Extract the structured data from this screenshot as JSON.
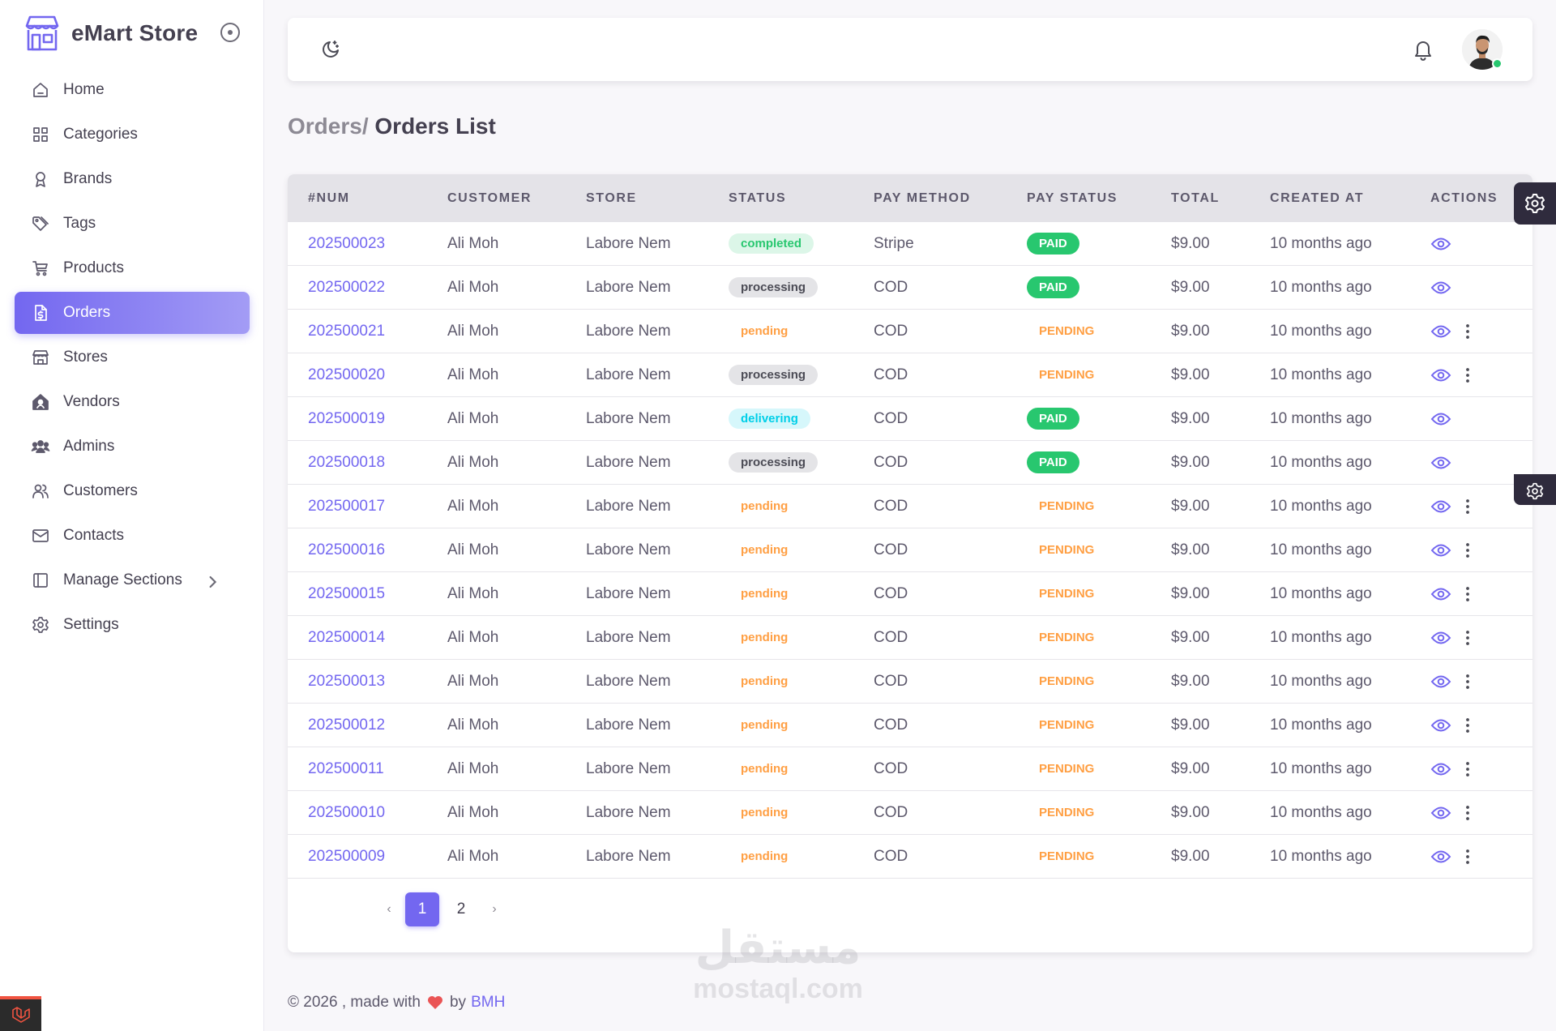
{
  "brand": {
    "name": "eMart Store"
  },
  "sidebar": {
    "items": [
      {
        "label": "Home",
        "icon": "home-icon"
      },
      {
        "label": "Categories",
        "icon": "categories-icon"
      },
      {
        "label": "Brands",
        "icon": "brands-icon"
      },
      {
        "label": "Tags",
        "icon": "tags-icon"
      },
      {
        "label": "Products",
        "icon": "cart-icon"
      },
      {
        "label": "Orders",
        "icon": "orders-icon",
        "active": true
      },
      {
        "label": "Stores",
        "icon": "store-icon"
      },
      {
        "label": "Vendors",
        "icon": "vendors-icon"
      },
      {
        "label": "Admins",
        "icon": "admins-icon"
      },
      {
        "label": "Customers",
        "icon": "customers-icon"
      },
      {
        "label": "Contacts",
        "icon": "mail-icon"
      },
      {
        "label": "Manage Sections",
        "icon": "sections-icon",
        "has_submenu": true
      },
      {
        "label": "Settings",
        "icon": "settings-icon"
      }
    ]
  },
  "breadcrumb": {
    "parent": "Orders/",
    "current": "Orders List"
  },
  "table": {
    "columns": [
      "#NUM",
      "CUSTOMER",
      "STORE",
      "STATUS",
      "PAY METHOD",
      "PAY STATUS",
      "TOTAL",
      "CREATED AT",
      "ACTIONS"
    ],
    "rows": [
      {
        "num": "202500023",
        "customer": "Ali Moh",
        "store": "Labore Nem",
        "status": "completed",
        "pay_method": "Stripe",
        "pay_status": "PAID",
        "total": "$9.00",
        "created": "10 months ago",
        "more": false
      },
      {
        "num": "202500022",
        "customer": "Ali Moh",
        "store": "Labore Nem",
        "status": "processing",
        "pay_method": "COD",
        "pay_status": "PAID",
        "total": "$9.00",
        "created": "10 months ago",
        "more": false
      },
      {
        "num": "202500021",
        "customer": "Ali Moh",
        "store": "Labore Nem",
        "status": "pending",
        "pay_method": "COD",
        "pay_status": "PENDING",
        "total": "$9.00",
        "created": "10 months ago",
        "more": true
      },
      {
        "num": "202500020",
        "customer": "Ali Moh",
        "store": "Labore Nem",
        "status": "processing",
        "pay_method": "COD",
        "pay_status": "PENDING",
        "total": "$9.00",
        "created": "10 months ago",
        "more": true
      },
      {
        "num": "202500019",
        "customer": "Ali Moh",
        "store": "Labore Nem",
        "status": "delivering",
        "pay_method": "COD",
        "pay_status": "PAID",
        "total": "$9.00",
        "created": "10 months ago",
        "more": false
      },
      {
        "num": "202500018",
        "customer": "Ali Moh",
        "store": "Labore Nem",
        "status": "processing",
        "pay_method": "COD",
        "pay_status": "PAID",
        "total": "$9.00",
        "created": "10 months ago",
        "more": false
      },
      {
        "num": "202500017",
        "customer": "Ali Moh",
        "store": "Labore Nem",
        "status": "pending",
        "pay_method": "COD",
        "pay_status": "PENDING",
        "total": "$9.00",
        "created": "10 months ago",
        "more": true
      },
      {
        "num": "202500016",
        "customer": "Ali Moh",
        "store": "Labore Nem",
        "status": "pending",
        "pay_method": "COD",
        "pay_status": "PENDING",
        "total": "$9.00",
        "created": "10 months ago",
        "more": true
      },
      {
        "num": "202500015",
        "customer": "Ali Moh",
        "store": "Labore Nem",
        "status": "pending",
        "pay_method": "COD",
        "pay_status": "PENDING",
        "total": "$9.00",
        "created": "10 months ago",
        "more": true
      },
      {
        "num": "202500014",
        "customer": "Ali Moh",
        "store": "Labore Nem",
        "status": "pending",
        "pay_method": "COD",
        "pay_status": "PENDING",
        "total": "$9.00",
        "created": "10 months ago",
        "more": true
      },
      {
        "num": "202500013",
        "customer": "Ali Moh",
        "store": "Labore Nem",
        "status": "pending",
        "pay_method": "COD",
        "pay_status": "PENDING",
        "total": "$9.00",
        "created": "10 months ago",
        "more": true
      },
      {
        "num": "202500012",
        "customer": "Ali Moh",
        "store": "Labore Nem",
        "status": "pending",
        "pay_method": "COD",
        "pay_status": "PENDING",
        "total": "$9.00",
        "created": "10 months ago",
        "more": true
      },
      {
        "num": "202500011",
        "customer": "Ali Moh",
        "store": "Labore Nem",
        "status": "pending",
        "pay_method": "COD",
        "pay_status": "PENDING",
        "total": "$9.00",
        "created": "10 months ago",
        "more": true
      },
      {
        "num": "202500010",
        "customer": "Ali Moh",
        "store": "Labore Nem",
        "status": "pending",
        "pay_method": "COD",
        "pay_status": "PENDING",
        "total": "$9.00",
        "created": "10 months ago",
        "more": true
      },
      {
        "num": "202500009",
        "customer": "Ali Moh",
        "store": "Labore Nem",
        "status": "pending",
        "pay_method": "COD",
        "pay_status": "PENDING",
        "total": "$9.00",
        "created": "10 months ago",
        "more": true
      }
    ]
  },
  "pagination": {
    "prev": "‹",
    "pages": [
      "1",
      "2"
    ],
    "current": "1",
    "next": "›"
  },
  "footer": {
    "prefix": "© 2026 , made with",
    "by": "by",
    "author": "BMH"
  },
  "watermark": {
    "arabic": "مستقل",
    "latin": "mostaql.com"
  },
  "colors": {
    "primary": "#7367f0",
    "success": "#28c76f",
    "warning": "#ff9f43",
    "info": "#00cfe8"
  }
}
